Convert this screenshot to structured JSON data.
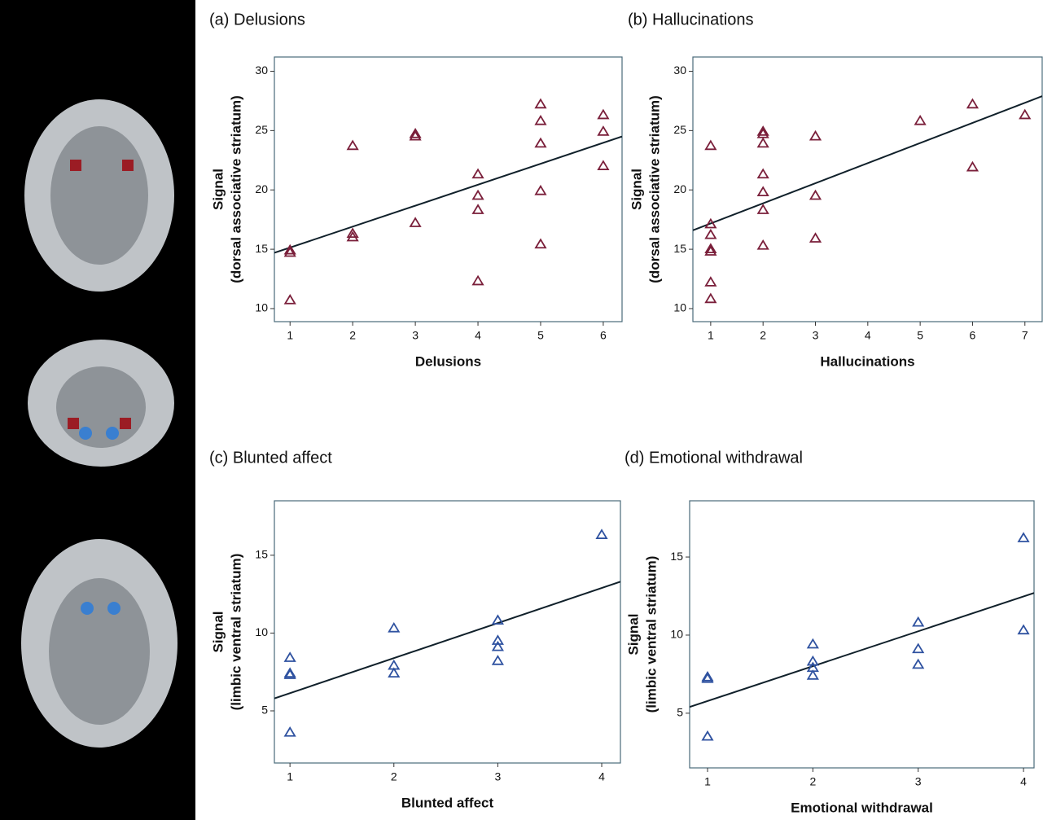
{
  "chart_data": [
    {
      "type": "scatter",
      "title": "(a) Delusions",
      "xlabel": "Delusions",
      "ylabel": [
        "Signal",
        "(dorsal associative striatum)"
      ],
      "color": "#7a1f3a",
      "marker": "triangle",
      "x": [
        1,
        1,
        1,
        2,
        2,
        2,
        3,
        3,
        3,
        4,
        4,
        4,
        4,
        5,
        5,
        5,
        5,
        5,
        6,
        6,
        6
      ],
      "values": [
        14.9,
        14.7,
        10.7,
        23.7,
        16.3,
        16.0,
        24.7,
        24.5,
        17.2,
        21.3,
        19.5,
        18.3,
        12.3,
        27.2,
        25.8,
        23.9,
        19.9,
        15.4,
        26.3,
        24.9,
        22.0
      ],
      "trendline": {
        "x": [
          0.75,
          6.3
        ],
        "y": [
          14.7,
          24.5
        ]
      },
      "xlim": [
        0.75,
        6.3
      ],
      "ylim": [
        8.9,
        31.2
      ],
      "xticks": [
        1,
        2,
        3,
        4,
        5,
        6
      ],
      "yticks": [
        10,
        15,
        20,
        25,
        30
      ]
    },
    {
      "type": "scatter",
      "title": "(b) Hallucinations",
      "xlabel": "Hallucinations",
      "ylabel": [
        "Signal",
        "(dorsal associative striatum)"
      ],
      "color": "#7a1f3a",
      "marker": "triangle",
      "x": [
        1,
        1,
        1,
        1,
        1,
        1,
        1,
        2,
        2,
        2,
        2,
        2,
        2,
        2,
        3,
        3,
        3,
        5,
        6,
        6,
        7
      ],
      "values": [
        23.7,
        17.1,
        16.2,
        15.0,
        14.8,
        12.2,
        10.8,
        24.9,
        24.7,
        23.9,
        21.3,
        19.8,
        18.3,
        15.3,
        24.5,
        19.5,
        15.9,
        25.8,
        27.2,
        21.9,
        26.3
      ],
      "trendline": {
        "x": [
          0.66,
          7.33
        ],
        "y": [
          16.6,
          27.9
        ]
      },
      "xlim": [
        0.66,
        7.33
      ],
      "ylim": [
        8.9,
        31.2
      ],
      "xticks": [
        1,
        2,
        3,
        4,
        5,
        6,
        7
      ],
      "yticks": [
        10,
        15,
        20,
        25,
        30
      ]
    },
    {
      "type": "scatter",
      "title": "(c) Blunted affect",
      "xlabel": "Blunted affect",
      "ylabel": [
        "Signal",
        "(limbic ventral striatum)"
      ],
      "color": "#2f52a0",
      "marker": "triangle",
      "x": [
        1,
        1,
        1,
        1,
        2,
        2,
        2,
        3,
        3,
        3,
        3,
        4
      ],
      "values": [
        8.4,
        7.4,
        7.3,
        3.6,
        10.3,
        7.9,
        7.4,
        10.8,
        9.5,
        9.1,
        8.2,
        16.3
      ],
      "trendline": {
        "x": [
          0.85,
          4.18
        ],
        "y": [
          5.8,
          13.3
        ]
      },
      "xlim": [
        0.85,
        4.18
      ],
      "ylim": [
        1.65,
        18.5
      ],
      "xticks": [
        1,
        2,
        3,
        4
      ],
      "yticks": [
        5,
        10,
        15
      ]
    },
    {
      "type": "scatter",
      "title": "(d) Emotional withdrawal",
      "xlabel": "Emotional withdrawal",
      "ylabel": [
        "Signal",
        "(limbic ventral striatum)"
      ],
      "color": "#2f52a0",
      "marker": "triangle",
      "x": [
        1,
        1,
        1,
        2,
        2,
        2,
        2,
        3,
        3,
        3,
        4,
        4
      ],
      "values": [
        7.3,
        7.2,
        3.5,
        9.4,
        8.3,
        7.9,
        7.4,
        10.8,
        9.1,
        8.1,
        16.2,
        10.3
      ],
      "trendline": {
        "x": [
          0.83,
          4.1
        ],
        "y": [
          5.4,
          12.7
        ]
      },
      "xlim": [
        0.83,
        4.1
      ],
      "ylim": [
        1.5,
        18.6
      ],
      "xticks": [
        1,
        2,
        3,
        4
      ],
      "yticks": [
        5,
        10,
        15
      ]
    }
  ]
}
